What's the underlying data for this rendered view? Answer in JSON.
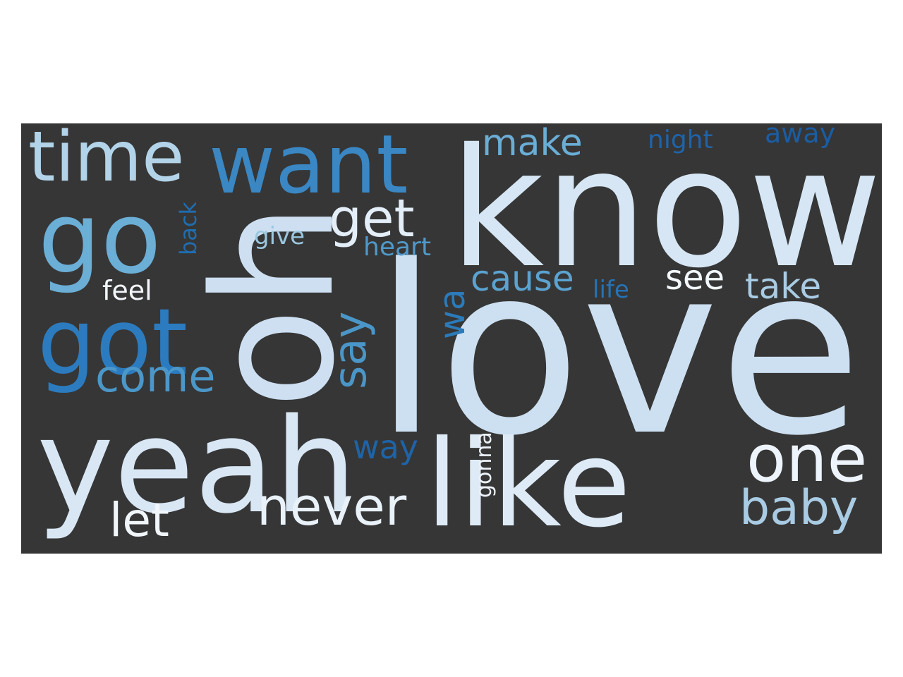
{
  "background": "#363636",
  "page_background": "#ffffff",
  "words": [
    {
      "text": "love",
      "color": "#cde0f1",
      "rotated": false
    },
    {
      "text": "know",
      "color": "#d6e6f4",
      "rotated": false
    },
    {
      "text": "oh",
      "color": "#cddff1",
      "rotated": true
    },
    {
      "text": "yeah",
      "color": "#d9e7f5",
      "rotated": false
    },
    {
      "text": "like",
      "color": "#deebf7",
      "rotated": false
    },
    {
      "text": "time",
      "color": "#b3d3e8",
      "rotated": false
    },
    {
      "text": "want",
      "color": "#3a87c3",
      "rotated": false
    },
    {
      "text": "go",
      "color": "#6baed6",
      "rotated": false
    },
    {
      "text": "got",
      "color": "#2c7bbe",
      "rotated": false
    },
    {
      "text": "one",
      "color": "#eef4fb",
      "rotated": false
    },
    {
      "text": "never",
      "color": "#e9f1f9",
      "rotated": false
    },
    {
      "text": "baby",
      "color": "#a9cce4",
      "rotated": false
    },
    {
      "text": "let",
      "color": "#f1f6fb",
      "rotated": false
    },
    {
      "text": "come",
      "color": "#4b97c9",
      "rotated": false
    },
    {
      "text": "get",
      "color": "#e3eef8",
      "rotated": false
    },
    {
      "text": "say",
      "color": "#4a96c8",
      "rotated": true
    },
    {
      "text": "wa",
      "color": "#2b7bba",
      "rotated": true
    },
    {
      "text": "make",
      "color": "#6aaed6",
      "rotated": false
    },
    {
      "text": "cause",
      "color": "#5ba3d0",
      "rotated": false
    },
    {
      "text": "see",
      "color": "#f3f8fc",
      "rotated": false
    },
    {
      "text": "take",
      "color": "#a9cce4",
      "rotated": false
    },
    {
      "text": "way",
      "color": "#1d64a8",
      "rotated": false
    },
    {
      "text": "gonna",
      "color": "#edf3fa",
      "rotated": true
    },
    {
      "text": "feel",
      "color": "#f3f7fc",
      "rotated": false
    },
    {
      "text": "give",
      "color": "#9ac7e0",
      "rotated": false
    },
    {
      "text": "heart",
      "color": "#4f99ca",
      "rotated": false
    },
    {
      "text": "back",
      "color": "#1f6db1",
      "rotated": true
    },
    {
      "text": "night",
      "color": "#1f63a8",
      "rotated": false
    },
    {
      "text": "away",
      "color": "#1a5da3",
      "rotated": false
    },
    {
      "text": "life",
      "color": "#2573b5",
      "rotated": false
    }
  ]
}
